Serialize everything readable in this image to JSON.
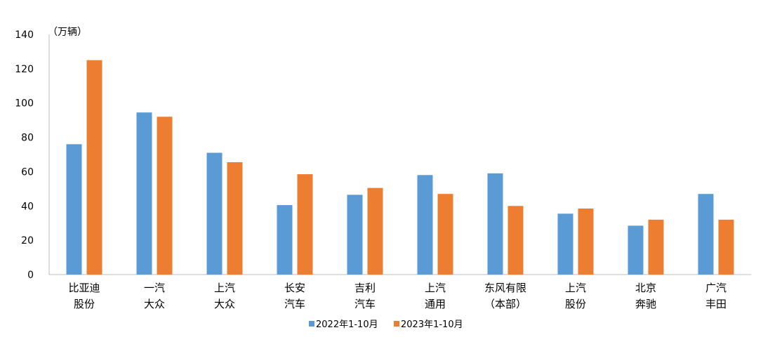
{
  "chart_data": {
    "type": "bar",
    "title": "",
    "unit_label": "（万辆）",
    "ylim": [
      0,
      140
    ],
    "yticks": [
      0,
      20,
      40,
      60,
      80,
      100,
      120,
      140
    ],
    "grid": false,
    "legend_position": "bottom",
    "categories": [
      [
        "比亚迪",
        "股份"
      ],
      [
        "一汽",
        "大众"
      ],
      [
        "上汽",
        "大众"
      ],
      [
        "长安",
        "汽车"
      ],
      [
        "吉利",
        "汽车"
      ],
      [
        "上汽",
        "通用"
      ],
      [
        "东风有限",
        "（本部）"
      ],
      [
        "上汽",
        "股份"
      ],
      [
        "北京",
        "奔驰"
      ],
      [
        "广汽",
        "丰田"
      ]
    ],
    "series": [
      {
        "name": "2022年1-10月",
        "color": "#5b9bd5",
        "values": [
          76,
          94.5,
          71,
          40.5,
          46.5,
          58,
          59,
          35.5,
          28.5,
          47
        ]
      },
      {
        "name": "2023年1-10月",
        "color": "#ed7d31",
        "values": [
          125,
          92,
          65.5,
          58.5,
          50.5,
          47,
          40,
          38.5,
          32,
          32
        ]
      }
    ]
  }
}
